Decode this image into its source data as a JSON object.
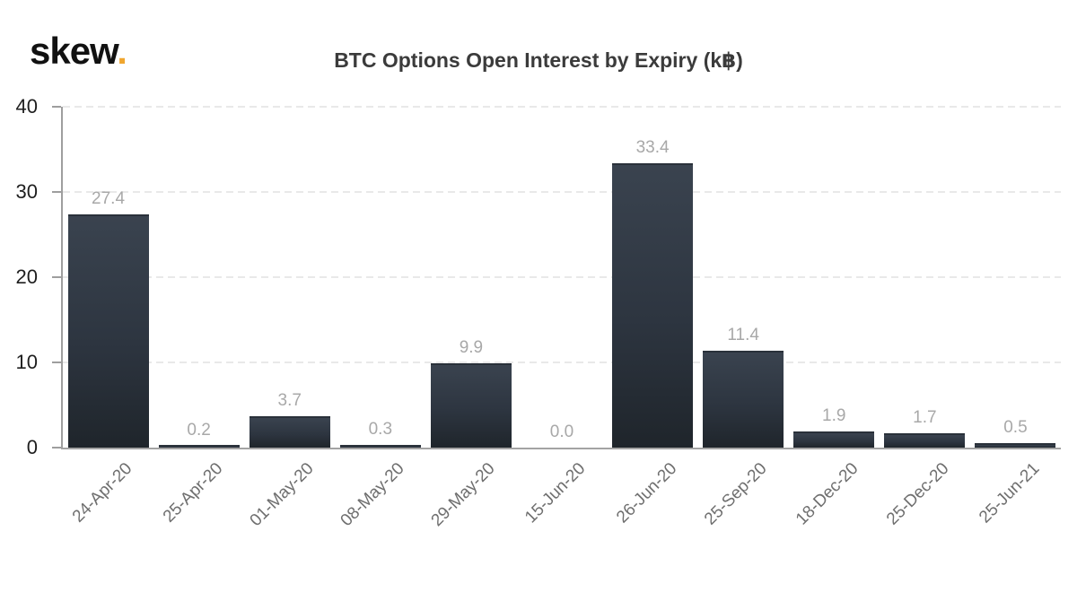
{
  "brand": {
    "logo_text": "skew",
    "logo_dot": ".",
    "logo_dot_color": "#f0a62f"
  },
  "chart_data": {
    "type": "bar",
    "title": "BTC Options Open Interest by Expiry (k฿)",
    "xlabel": "",
    "ylabel": "",
    "categories": [
      "24-Apr-20",
      "25-Apr-20",
      "01-May-20",
      "08-May-20",
      "29-May-20",
      "15-Jun-20",
      "26-Jun-20",
      "25-Sep-20",
      "18-Dec-20",
      "25-Dec-20",
      "25-Jun-21"
    ],
    "values": [
      27.4,
      0.2,
      3.7,
      0.3,
      9.9,
      0.0,
      33.4,
      11.4,
      1.9,
      1.7,
      0.5
    ],
    "value_labels": [
      "27.4",
      "0.2",
      "3.7",
      "0.3",
      "9.9",
      "0.0",
      "33.4",
      "11.4",
      "1.9",
      "1.7",
      "0.5"
    ],
    "y_ticks": [
      0,
      10,
      20,
      30,
      40
    ],
    "y_tick_labels": [
      "0",
      "10",
      "20",
      "30",
      "40"
    ],
    "ylim": [
      0,
      40
    ],
    "grid": "horizontal-dashed",
    "legend": "none",
    "colors": {
      "bar_top": "#3a434f",
      "bar_bottom": "#1f252b",
      "axis": "#9e9e9e",
      "gridline": "#e9e9e9",
      "value_label": "#a8a8a8",
      "x_label": "#6f6f6f",
      "y_label": "#1e1e1e",
      "title": "#3b3b3b"
    }
  }
}
